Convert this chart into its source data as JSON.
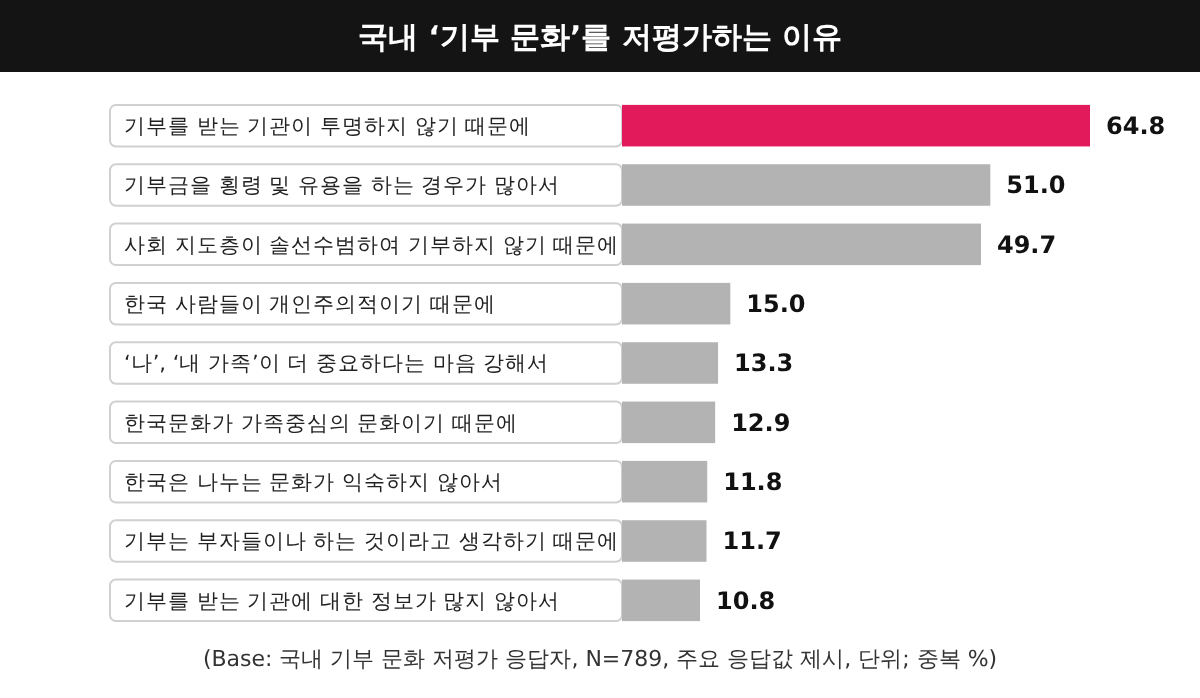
{
  "chart_data": {
    "type": "bar",
    "orientation": "horizontal",
    "title": "국내 ‘기부 문화’를 저평가하는 이유",
    "categories": [
      "기부를 받는 기관이 투명하지 않기 때문에",
      "기부금을 횡령 및 유용을 하는 경우가 많아서",
      "사회 지도층이 솔선수범하여 기부하지 않기 때문에",
      "한국 사람들이 개인주의적이기 때문에",
      "‘나’, ‘내 가족’이 더 중요하다는 마음 강해서",
      "한국문화가 가족중심의 문화이기 때문에",
      "한국은 나누는 문화가 익숙하지 않아서",
      "기부는 부자들이나 하는 것이라고 생각하기 때문에",
      "기부를 받는 기관에 대한 정보가 많지 않아서"
    ],
    "values": [
      64.8,
      51.0,
      49.7,
      15.0,
      13.3,
      12.9,
      11.8,
      11.7,
      10.8
    ],
    "value_labels": [
      "64.8",
      "51.0",
      "49.7",
      "15.0",
      "13.3",
      "12.9",
      "11.8",
      "11.7",
      "10.8"
    ],
    "colors": [
      "#e2195b",
      "#b3b3b3",
      "#b3b3b3",
      "#b3b3b3",
      "#b3b3b3",
      "#b3b3b3",
      "#b3b3b3",
      "#b3b3b3",
      "#b3b3b3"
    ],
    "annotations": [
      "(Base: 국내 기부 문화 저평가 응답자, N=789, 주요 응답값 제시, 단위; 중복 %)"
    ]
  }
}
